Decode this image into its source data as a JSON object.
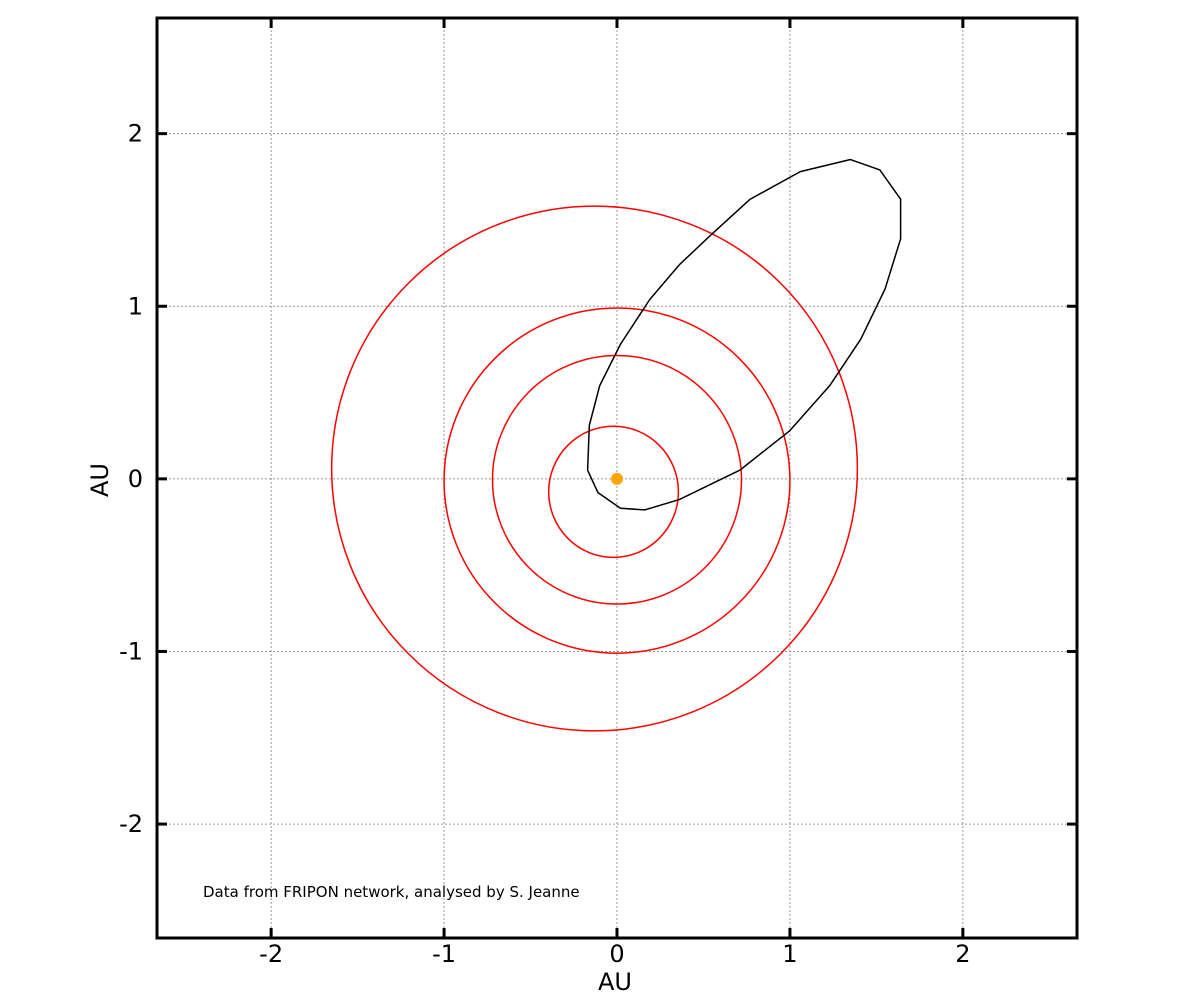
{
  "chart_data": {
    "type": "line",
    "xlabel": "AU",
    "ylabel": "AU",
    "xlim": [
      -2.66,
      2.66
    ],
    "ylim": [
      -2.66,
      2.67
    ],
    "xticks": [
      -2,
      -1,
      0,
      1,
      2
    ],
    "yticks": [
      -2,
      -1,
      0,
      1,
      2
    ],
    "grid": true,
    "annotation": "Data from FRIPON network, analysed by S. Jeanne",
    "sun": {
      "x": 0,
      "y": 0,
      "color": "#ffa500"
    },
    "planet_orbits": {
      "color": "#ff0000",
      "orbits": [
        {
          "cx": -0.02,
          "cy": -0.075,
          "rx": 0.375,
          "ry": 0.38
        },
        {
          "cx": 0.0,
          "cy": -0.005,
          "rx": 0.72,
          "ry": 0.72
        },
        {
          "cx": 0.0,
          "cy": -0.01,
          "rx": 1.0,
          "ry": 1.0
        },
        {
          "cx": -0.13,
          "cy": 0.06,
          "rx": 1.52,
          "ry": 1.52
        }
      ]
    },
    "meteoroid_orbit": {
      "color": "#000000",
      "points": [
        [
          -0.17,
          0.05
        ],
        [
          -0.11,
          -0.08
        ],
        [
          0.02,
          -0.17
        ],
        [
          0.16,
          -0.18
        ],
        [
          0.36,
          -0.12
        ],
        [
          0.71,
          0.05
        ],
        [
          1.0,
          0.28
        ],
        [
          1.23,
          0.54
        ],
        [
          1.41,
          0.81
        ],
        [
          1.55,
          1.1
        ],
        [
          1.64,
          1.39
        ],
        [
          1.64,
          1.62
        ],
        [
          1.52,
          1.79
        ],
        [
          1.35,
          1.85
        ],
        [
          1.06,
          1.78
        ],
        [
          0.77,
          1.62
        ],
        [
          0.54,
          1.41
        ],
        [
          0.36,
          1.24
        ],
        [
          0.19,
          1.04
        ],
        [
          0.02,
          0.78
        ],
        [
          -0.1,
          0.54
        ],
        [
          -0.16,
          0.31
        ],
        [
          -0.17,
          0.05
        ]
      ]
    }
  }
}
